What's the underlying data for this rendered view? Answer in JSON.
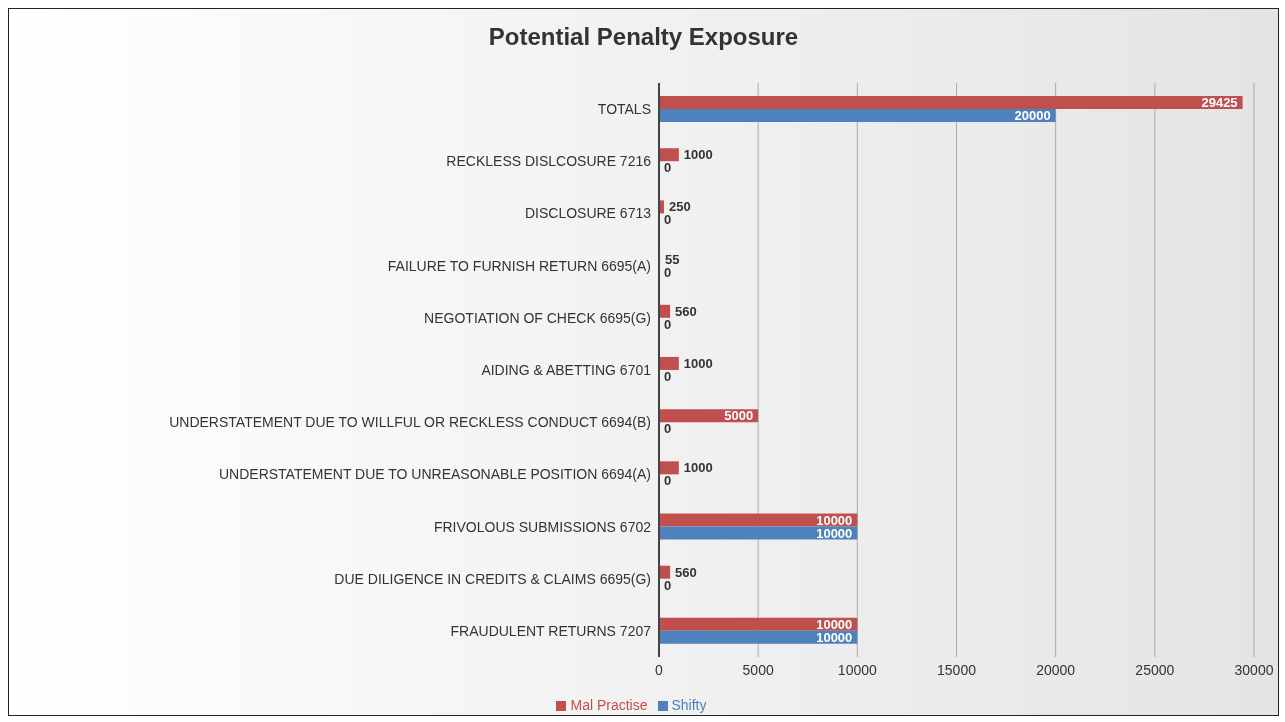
{
  "chart_data": {
    "type": "bar",
    "orientation": "horizontal",
    "title": "Potential Penalty Exposure",
    "categories": [
      "TOTALS",
      "RECKLESS DISLCOSURE 7216",
      "DISCLOSURE 6713",
      "FAILURE TO FURNISH RETURN 6695(A)",
      "NEGOTIATION OF CHECK 6695(G)",
      "AIDING & ABETTING 6701",
      "UNDERSTATEMENT DUE TO WILLFUL OR RECKLESS CONDUCT 6694(B)",
      "UNDERSTATEMENT DUE TO UNREASONABLE POSITION 6694(A)",
      "FRIVOLOUS SUBMISSIONS 6702",
      "DUE DILIGENCE IN CREDITS & CLAIMS 6695(G)",
      "FRAUDULENT RETURNS 7207"
    ],
    "series": [
      {
        "name": "Mal Practise",
        "color": "#c0504d",
        "values": [
          29425,
          1000,
          250,
          55,
          560,
          1000,
          5000,
          1000,
          10000,
          560,
          10000
        ]
      },
      {
        "name": "Shifty",
        "color": "#4f81bd",
        "values": [
          20000,
          0,
          0,
          0,
          0,
          0,
          0,
          0,
          10000,
          0,
          10000
        ]
      }
    ],
    "xlim": [
      0,
      30000
    ],
    "xticks": [
      0,
      5000,
      10000,
      15000,
      20000,
      25000,
      30000
    ],
    "grid": "x",
    "legend": "bottom",
    "data_labels": true
  }
}
